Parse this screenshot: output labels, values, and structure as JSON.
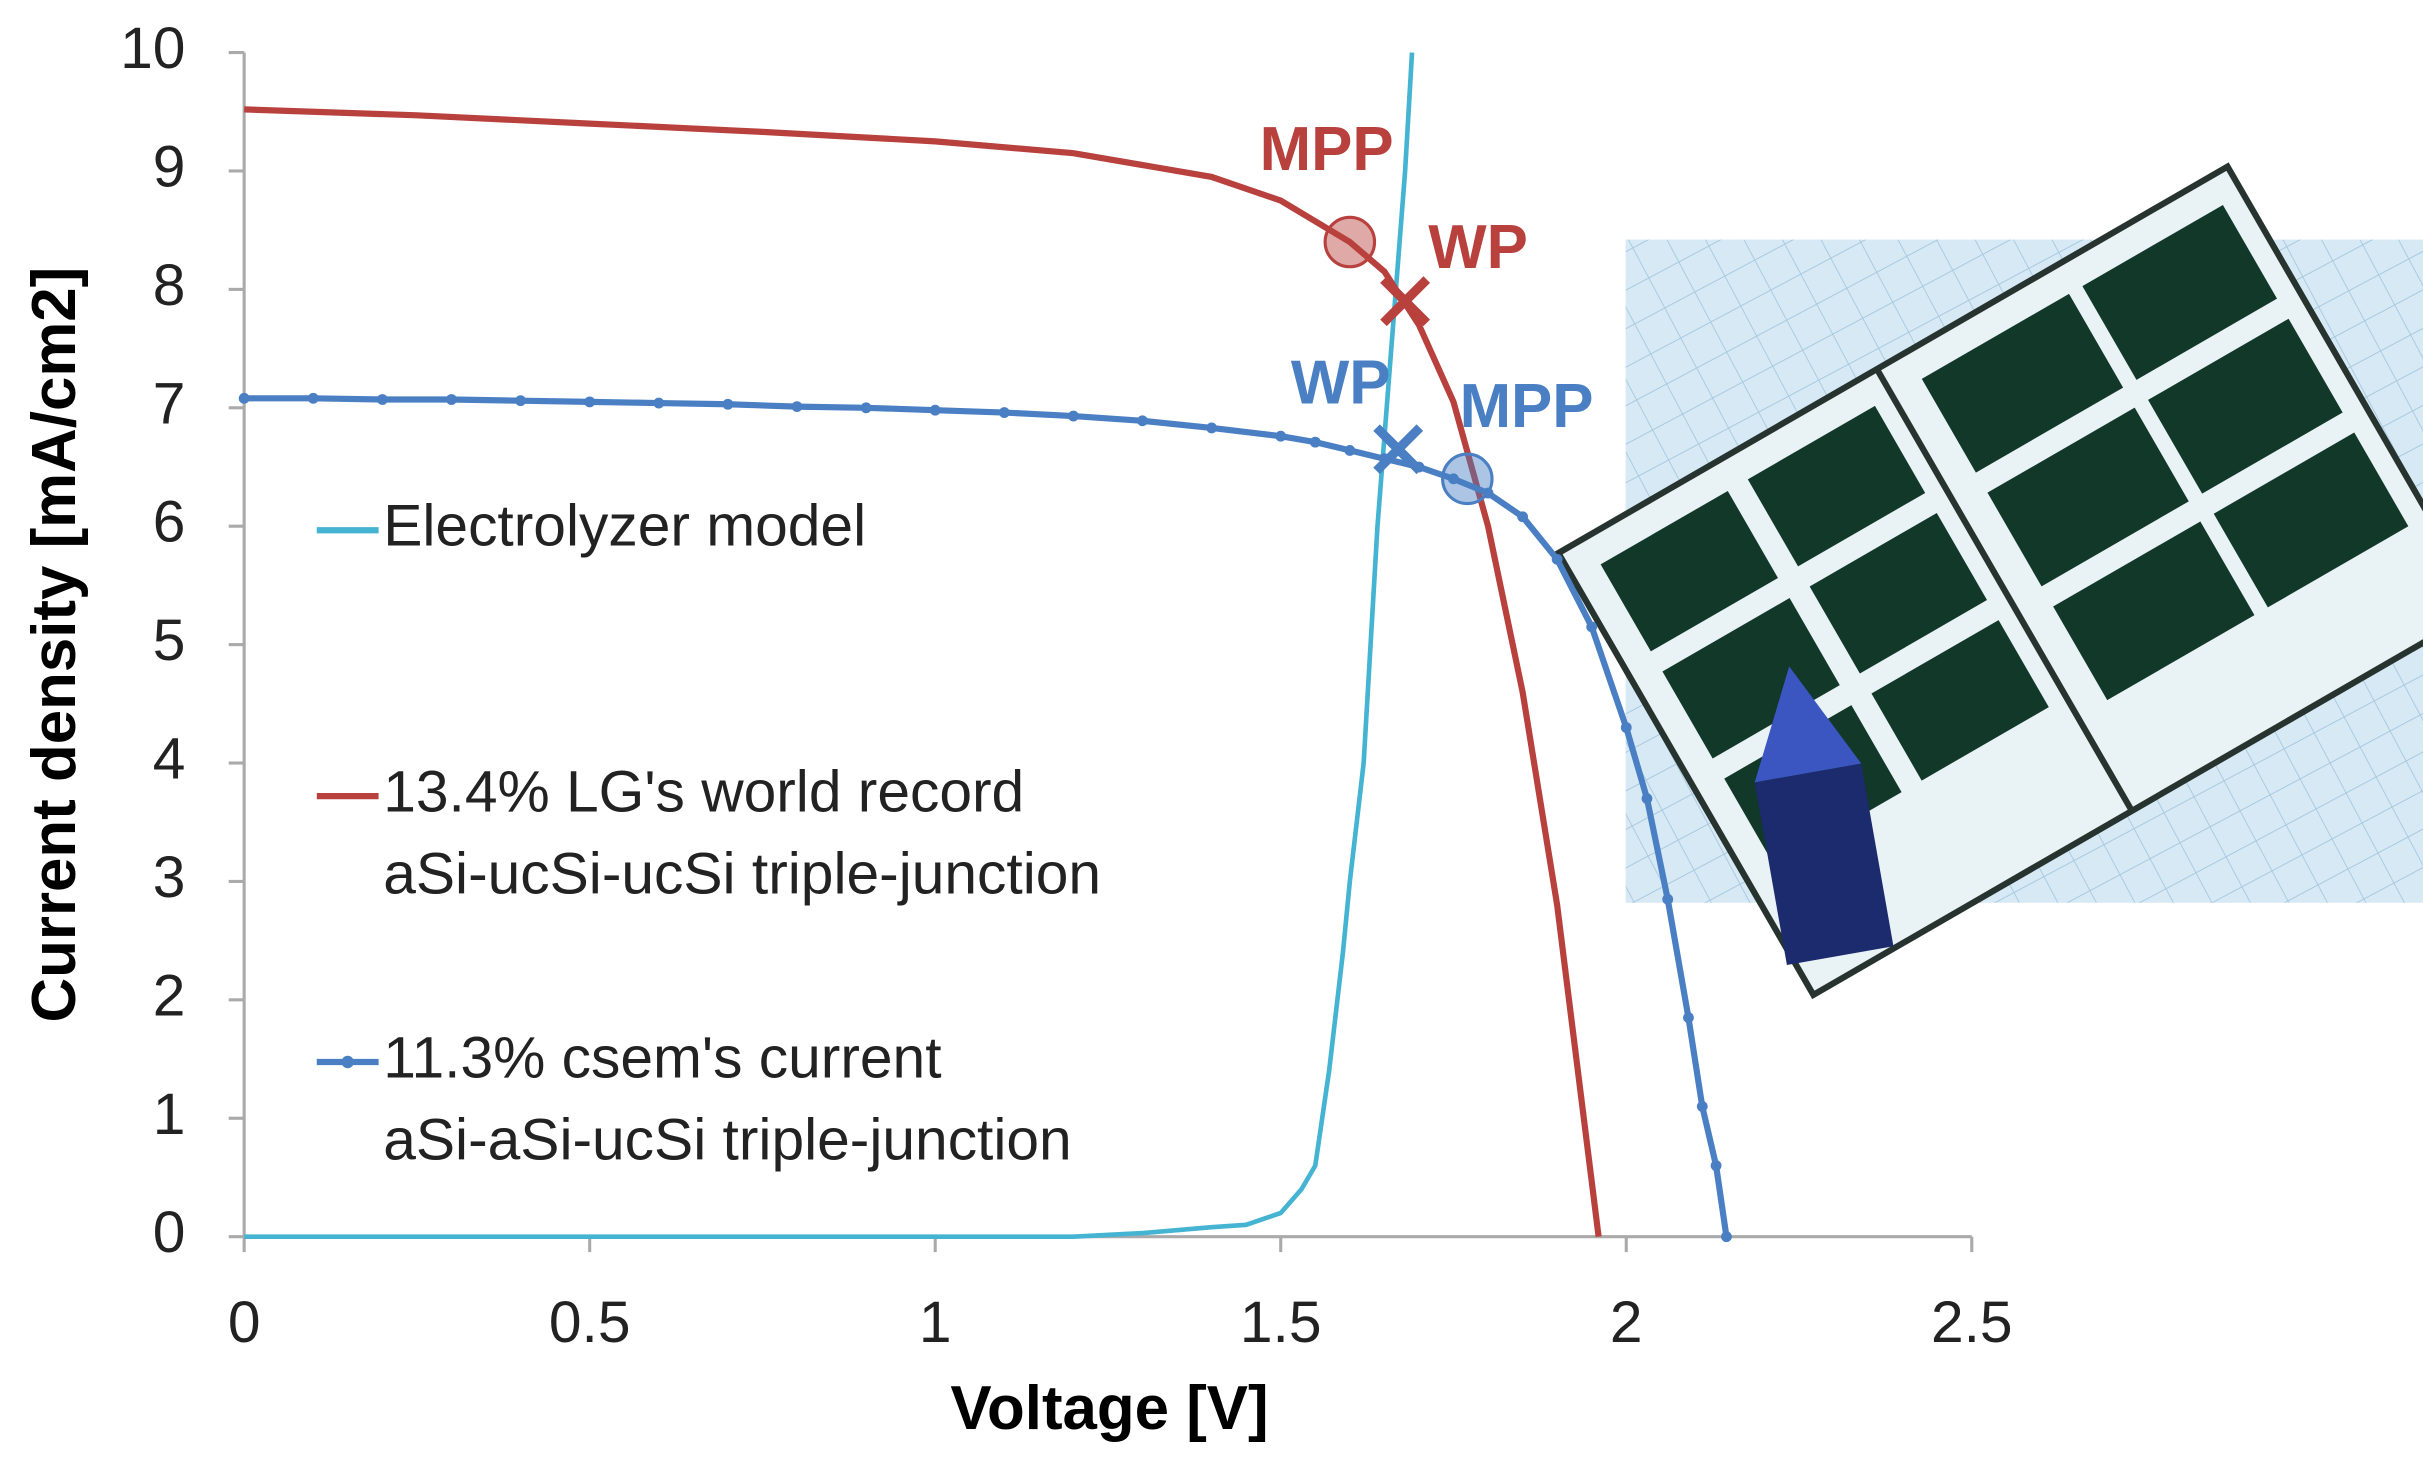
{
  "chart_data": {
    "type": "line",
    "xlabel": "Voltage [V]",
    "ylabel": "Current density [mA/cm2]",
    "xlim": [
      0,
      2.5
    ],
    "xticks": [
      0,
      0.5,
      1,
      1.5,
      2,
      2.5
    ],
    "ylim": [
      0,
      10
    ],
    "yticks": [
      0,
      1,
      2,
      3,
      4,
      5,
      6,
      7,
      8,
      9,
      10
    ],
    "series": [
      {
        "name": [
          "Electrolyzer model"
        ],
        "color": "#45b3d2",
        "markers": false,
        "x": [
          0,
          0.5,
          1,
          1.2,
          1.3,
          1.4,
          1.45,
          1.5,
          1.53,
          1.55,
          1.57,
          1.59,
          1.6,
          1.62,
          1.64,
          1.66,
          1.68,
          1.69
        ],
        "values": [
          0,
          0,
          0,
          0,
          0.03,
          0.08,
          0.1,
          0.2,
          0.4,
          0.6,
          1.4,
          2.4,
          3.0,
          4.0,
          6.0,
          7.5,
          9.0,
          10
        ]
      },
      {
        "name": [
          "13.4% LG's world record",
          "aSi-ucSi-ucSi triple-junction"
        ],
        "color": "#b8403d",
        "markers": false,
        "x": [
          0,
          0.25,
          0.5,
          0.75,
          1,
          1.2,
          1.4,
          1.5,
          1.6,
          1.65,
          1.7,
          1.75,
          1.8,
          1.85,
          1.9,
          1.93,
          1.96
        ],
        "values": [
          9.52,
          9.47,
          9.4,
          9.33,
          9.25,
          9.15,
          8.95,
          8.75,
          8.4,
          8.15,
          7.7,
          7.05,
          6.0,
          4.6,
          2.8,
          1.4,
          0
        ]
      },
      {
        "name": [
          "11.3% csem's current",
          "aSi-aSi-ucSi triple-junction"
        ],
        "color": "#4a7fc4",
        "markers": true,
        "x": [
          0,
          0.1,
          0.2,
          0.3,
          0.4,
          0.5,
          0.6,
          0.7,
          0.8,
          0.9,
          1,
          1.1,
          1.2,
          1.3,
          1.4,
          1.5,
          1.55,
          1.6,
          1.65,
          1.7,
          1.75,
          1.8,
          1.85,
          1.9,
          1.95,
          2.0,
          2.03,
          2.06,
          2.09,
          2.11,
          2.13,
          2.145
        ],
        "values": [
          7.08,
          7.08,
          7.07,
          7.07,
          7.06,
          7.05,
          7.04,
          7.03,
          7.01,
          7.0,
          6.98,
          6.96,
          6.93,
          6.89,
          6.83,
          6.76,
          6.71,
          6.64,
          6.57,
          6.5,
          6.4,
          6.28,
          6.08,
          5.72,
          5.15,
          4.3,
          3.7,
          2.85,
          1.85,
          1.1,
          0.6,
          0
        ]
      }
    ],
    "annotations": [
      {
        "label": "MPP",
        "x": 1.6,
        "y": 8.4,
        "marker": "circle",
        "color": "#b8403d"
      },
      {
        "label": "WP",
        "x": 1.68,
        "y": 7.9,
        "marker": "cross",
        "color": "#b8403d"
      },
      {
        "label": "WP",
        "x": 1.67,
        "y": 6.65,
        "marker": "cross",
        "color": "#4a7fc4"
      },
      {
        "label": "MPP",
        "x": 1.77,
        "y": 6.4,
        "marker": "circle",
        "color": "#4a7fc4"
      }
    ]
  }
}
